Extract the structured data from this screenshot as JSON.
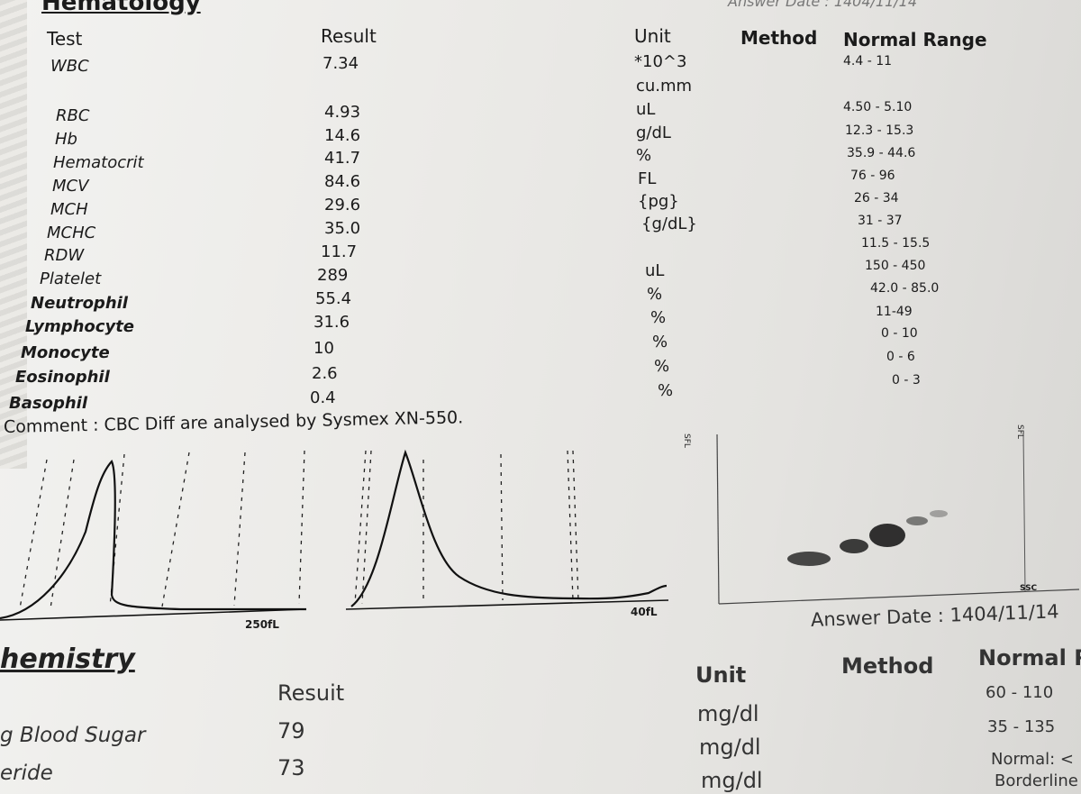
{
  "hematology": {
    "section_title": "Hematology",
    "answer_date": "Answer Date : 1404/11/14",
    "headers": {
      "test": "Test",
      "result": "Result",
      "unit": "Unit",
      "method": "Method",
      "normal_range": "Normal Range"
    },
    "rows": [
      {
        "test": "WBC",
        "result": "7.34",
        "unit": "*10^3",
        "range": "4.4 - 11"
      },
      {
        "test": "",
        "result": "",
        "unit": "cu.mm",
        "range": ""
      },
      {
        "test": "RBC",
        "result": "4.93",
        "unit": "uL",
        "range": "4.50 - 5.10"
      },
      {
        "test": "Hb",
        "result": "14.6",
        "unit": "g/dL",
        "range": "12.3 - 15.3"
      },
      {
        "test": "Hematocrit",
        "result": "41.7",
        "unit": "%",
        "range": "35.9 - 44.6"
      },
      {
        "test": "MCV",
        "result": "84.6",
        "unit": "FL",
        "range": "76 - 96"
      },
      {
        "test": "MCH",
        "result": "29.6",
        "unit": "{pg}",
        "range": "26 - 34"
      },
      {
        "test": "MCHC",
        "result": "35.0",
        "unit": "{g/dL}",
        "range": "31 - 37"
      },
      {
        "test": "RDW",
        "result": "11.7",
        "unit": "",
        "range": "11.5 - 15.5"
      },
      {
        "test": "Platelet",
        "result": "289",
        "unit": "uL",
        "range": "150 - 450"
      },
      {
        "test": "Neutrophil",
        "result": "55.4",
        "unit": "%",
        "range": "42.0 - 85.0"
      },
      {
        "test": "Lymphocyte",
        "result": "31.6",
        "unit": "%",
        "range": "11-49"
      },
      {
        "test": "Monocyte",
        "result": "10",
        "unit": "%",
        "range": "0 - 10"
      },
      {
        "test": "Eosinophil",
        "result": "2.6",
        "unit": "%",
        "range": "0 - 6"
      },
      {
        "test": "Basophil",
        "result": "0.4",
        "unit": "%",
        "range": "0 - 3"
      }
    ],
    "comment": "Comment : CBC Diff are analysed by Sysmex XN-550.",
    "histogram_labels": {
      "rbc": "250fL",
      "plt": "40fL",
      "scatter_y": "SFL",
      "scatter_y2": "SFL",
      "scatter_x": "SSC"
    }
  },
  "chemistry": {
    "section_title": "hemistry",
    "answer_date": "Answer Date : 1404/11/14",
    "headers": {
      "result": "Resuit",
      "unit": "Unit",
      "method": "Method",
      "normal_range": "Normal R"
    },
    "rows": [
      {
        "test": "g Blood Sugar",
        "result": "79",
        "unit": "mg/dl",
        "range": "60 - 110"
      },
      {
        "test": "eride",
        "result": "73",
        "unit": "mg/dl",
        "range": "35 - 135"
      },
      {
        "test": "",
        "result": "",
        "unit": "mg/dl",
        "range": "Normal: <"
      },
      {
        "test": "",
        "result": "",
        "unit": "",
        "range": "Borderline"
      }
    ]
  }
}
